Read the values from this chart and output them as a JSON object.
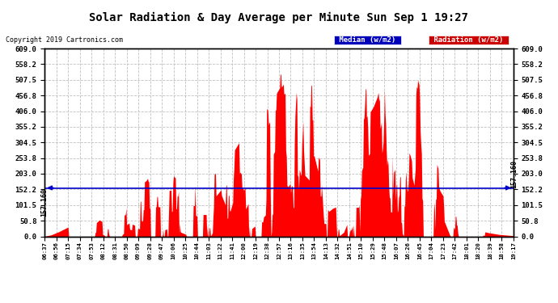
{
  "title": "Solar Radiation & Day Average per Minute Sun Sep 1 19:27",
  "copyright": "Copyright 2019 Cartronics.com",
  "median_value": 157.16,
  "median_label": "157.160",
  "y_ticks": [
    0.0,
    50.8,
    101.5,
    152.2,
    203.0,
    253.8,
    304.5,
    355.2,
    406.0,
    456.8,
    507.5,
    558.2,
    609.0
  ],
  "y_max": 609.0,
  "y_min": 0.0,
  "fill_color": "#FF0000",
  "line_color": "#0000CC",
  "background_color": "#FFFFFF",
  "grid_color": "#C0C0C0",
  "legend_median_bg": "#0000BB",
  "legend_radiation_bg": "#CC0000",
  "x_labels": [
    "06:37",
    "06:56",
    "07:15",
    "07:34",
    "07:53",
    "08:12",
    "08:31",
    "08:50",
    "09:09",
    "09:28",
    "09:47",
    "10:06",
    "10:25",
    "10:44",
    "11:03",
    "11:22",
    "11:41",
    "12:00",
    "12:19",
    "12:38",
    "12:57",
    "13:16",
    "13:35",
    "13:54",
    "14:13",
    "14:32",
    "14:51",
    "15:10",
    "15:29",
    "15:48",
    "16:07",
    "16:26",
    "16:45",
    "17:04",
    "17:23",
    "17:42",
    "18:01",
    "18:20",
    "18:39",
    "18:58",
    "19:17"
  ]
}
